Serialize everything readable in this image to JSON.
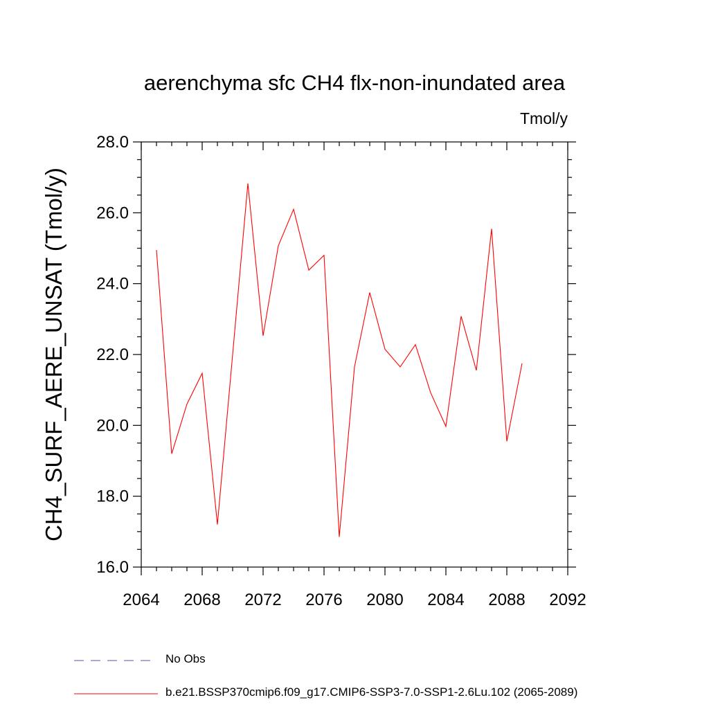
{
  "chart_data": {
    "type": "line",
    "title": "aerenchyma sfc CH4 flx-non-inundated area",
    "units_label": "Tmol/y",
    "ylabel": "CH4_SURF_AERE_UNSAT  (Tmol/y)",
    "xlabel": "",
    "xlim": [
      2064,
      2092
    ],
    "ylim": [
      16.0,
      28.0
    ],
    "x_ticks": [
      2064,
      2068,
      2072,
      2076,
      2080,
      2084,
      2088,
      2092
    ],
    "y_ticks": [
      "16.0",
      "18.0",
      "20.0",
      "22.0",
      "24.0",
      "26.0",
      "28.0"
    ],
    "grid": false,
    "legend_placement": "bottom",
    "series": [
      {
        "name": "b.e21.BSSP370cmip6.f09_g17.CMIP6-SSP3-7.0-SSP1-2.6Lu.102 (2065-2089)",
        "color": "#ff0000",
        "style": "solid",
        "x": [
          2065,
          2066,
          2067,
          2068,
          2069,
          2070,
          2071,
          2072,
          2073,
          2074,
          2075,
          2076,
          2077,
          2078,
          2079,
          2080,
          2081,
          2082,
          2083,
          2084,
          2085,
          2086,
          2087,
          2088,
          2089
        ],
        "values": [
          24.95,
          19.2,
          20.6,
          21.47,
          17.2,
          22.0,
          26.83,
          22.53,
          25.07,
          26.1,
          24.38,
          24.8,
          16.85,
          21.65,
          23.75,
          22.15,
          21.65,
          22.28,
          20.92,
          19.97,
          23.08,
          21.55,
          25.55,
          19.55,
          21.75
        ]
      }
    ],
    "legend": [
      {
        "label": "No Obs",
        "color": "#5a4fa8",
        "style": "dashed"
      },
      {
        "label": "b.e21.BSSP370cmip6.f09_g17.CMIP6-SSP3-7.0-SSP1-2.6Lu.102 (2065-2089)",
        "color": "#ff0000",
        "style": "solid"
      }
    ]
  }
}
